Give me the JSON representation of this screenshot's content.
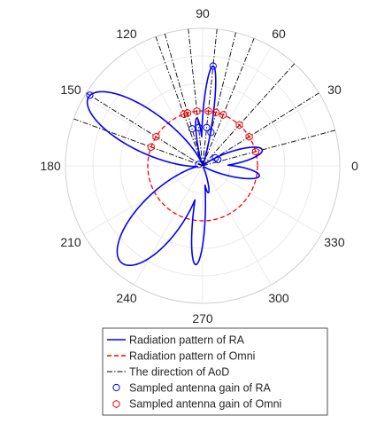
{
  "chart_data": {
    "type": "polar",
    "radial_range": [
      0,
      1
    ],
    "angle_ticks": [
      0,
      30,
      60,
      90,
      120,
      150,
      180,
      210,
      240,
      270,
      300,
      330
    ],
    "angle_tick_labels": [
      "0",
      "30",
      "60",
      "90",
      "120",
      "150",
      "180",
      "210",
      "240",
      "270",
      "300",
      "330"
    ],
    "radial_grid_levels": [
      0.2,
      0.4,
      0.6,
      0.8,
      1.0
    ],
    "grid": true,
    "legend_position": "bottom",
    "colors": {
      "ra": "#0000ff",
      "omni": "#ff0000",
      "aod": "#000000",
      "grid": "#e6e6e6"
    },
    "ra_lobes": [
      {
        "theta": 149,
        "gain": 0.97,
        "width": 15
      },
      {
        "theta": 84,
        "gain": 0.73,
        "width": 5
      },
      {
        "theta": 97,
        "gain": 0.35,
        "width": 5
      },
      {
        "theta": 15,
        "gain": 0.45,
        "width": 10
      },
      {
        "theta": -10,
        "gain": 0.42,
        "width": 9
      },
      {
        "theta": 230,
        "gain": 0.92,
        "width": 17
      },
      {
        "theta": 266,
        "gain": 0.72,
        "width": 6
      },
      {
        "theta": 282,
        "gain": 0.2,
        "width": 6
      }
    ],
    "omni_radius": 0.4,
    "aod_directions": [
      15,
      32,
      48,
      68,
      76,
      84,
      96,
      106,
      110,
      148,
      160
    ],
    "ra_samples": [
      {
        "theta": 84,
        "gain": 0.73
      },
      {
        "theta": 148,
        "gain": 0.97
      },
      {
        "theta": 96,
        "gain": 0.28
      },
      {
        "theta": 106,
        "gain": 0.28
      },
      {
        "theta": 84,
        "gain": 0.28
      },
      {
        "theta": 76,
        "gain": 0.25
      },
      {
        "theta": 32,
        "gain": 0.11
      },
      {
        "theta": 22,
        "gain": 0.12
      },
      {
        "theta": 160,
        "gain": 0.03
      }
    ],
    "omni_samples": [
      {
        "theta": 15,
        "gain": 0.4
      },
      {
        "theta": 32,
        "gain": 0.4
      },
      {
        "theta": 48,
        "gain": 0.4
      },
      {
        "theta": 68,
        "gain": 0.4
      },
      {
        "theta": 76,
        "gain": 0.4
      },
      {
        "theta": 84,
        "gain": 0.4
      },
      {
        "theta": 96,
        "gain": 0.4
      },
      {
        "theta": 106,
        "gain": 0.4
      },
      {
        "theta": 110,
        "gain": 0.4
      },
      {
        "theta": 148,
        "gain": 0.4
      },
      {
        "theta": 160,
        "gain": 0.4
      }
    ]
  },
  "legend": {
    "ra_pattern": "Radiation pattern of RA",
    "omni_pattern": "Radiation pattern of Omni",
    "aod": "The direction of AoD",
    "ra_samples": "Sampled antenna gain of RA",
    "omni_samples": "Sampled antenna gain of Omni"
  }
}
